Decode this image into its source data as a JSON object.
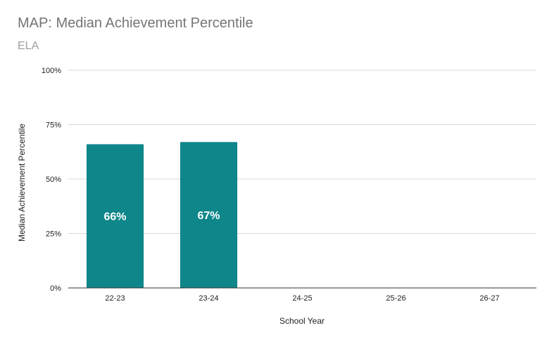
{
  "chart_data": {
    "type": "bar",
    "title": "MAP: Median Achievement Percentile",
    "subtitle": "ELA",
    "xlabel": "School Year",
    "ylabel": "Median Achievement Percentile",
    "categories": [
      "22-23",
      "23-24",
      "24-25",
      "25-26",
      "26-27"
    ],
    "values": [
      66,
      67,
      null,
      null,
      null
    ],
    "data_labels": [
      "66%",
      "67%",
      "",
      "",
      ""
    ],
    "ylim": [
      0,
      100
    ],
    "yticks": [
      0,
      25,
      50,
      75,
      100
    ],
    "ytick_labels": [
      "0%",
      "25%",
      "50%",
      "75%",
      "100%"
    ],
    "grid": true,
    "legend": "none",
    "bar_color": "#0e868a",
    "data_label_color": "#ffffff",
    "grid_color": "#d9d9d9",
    "axis_color": "#333333"
  }
}
